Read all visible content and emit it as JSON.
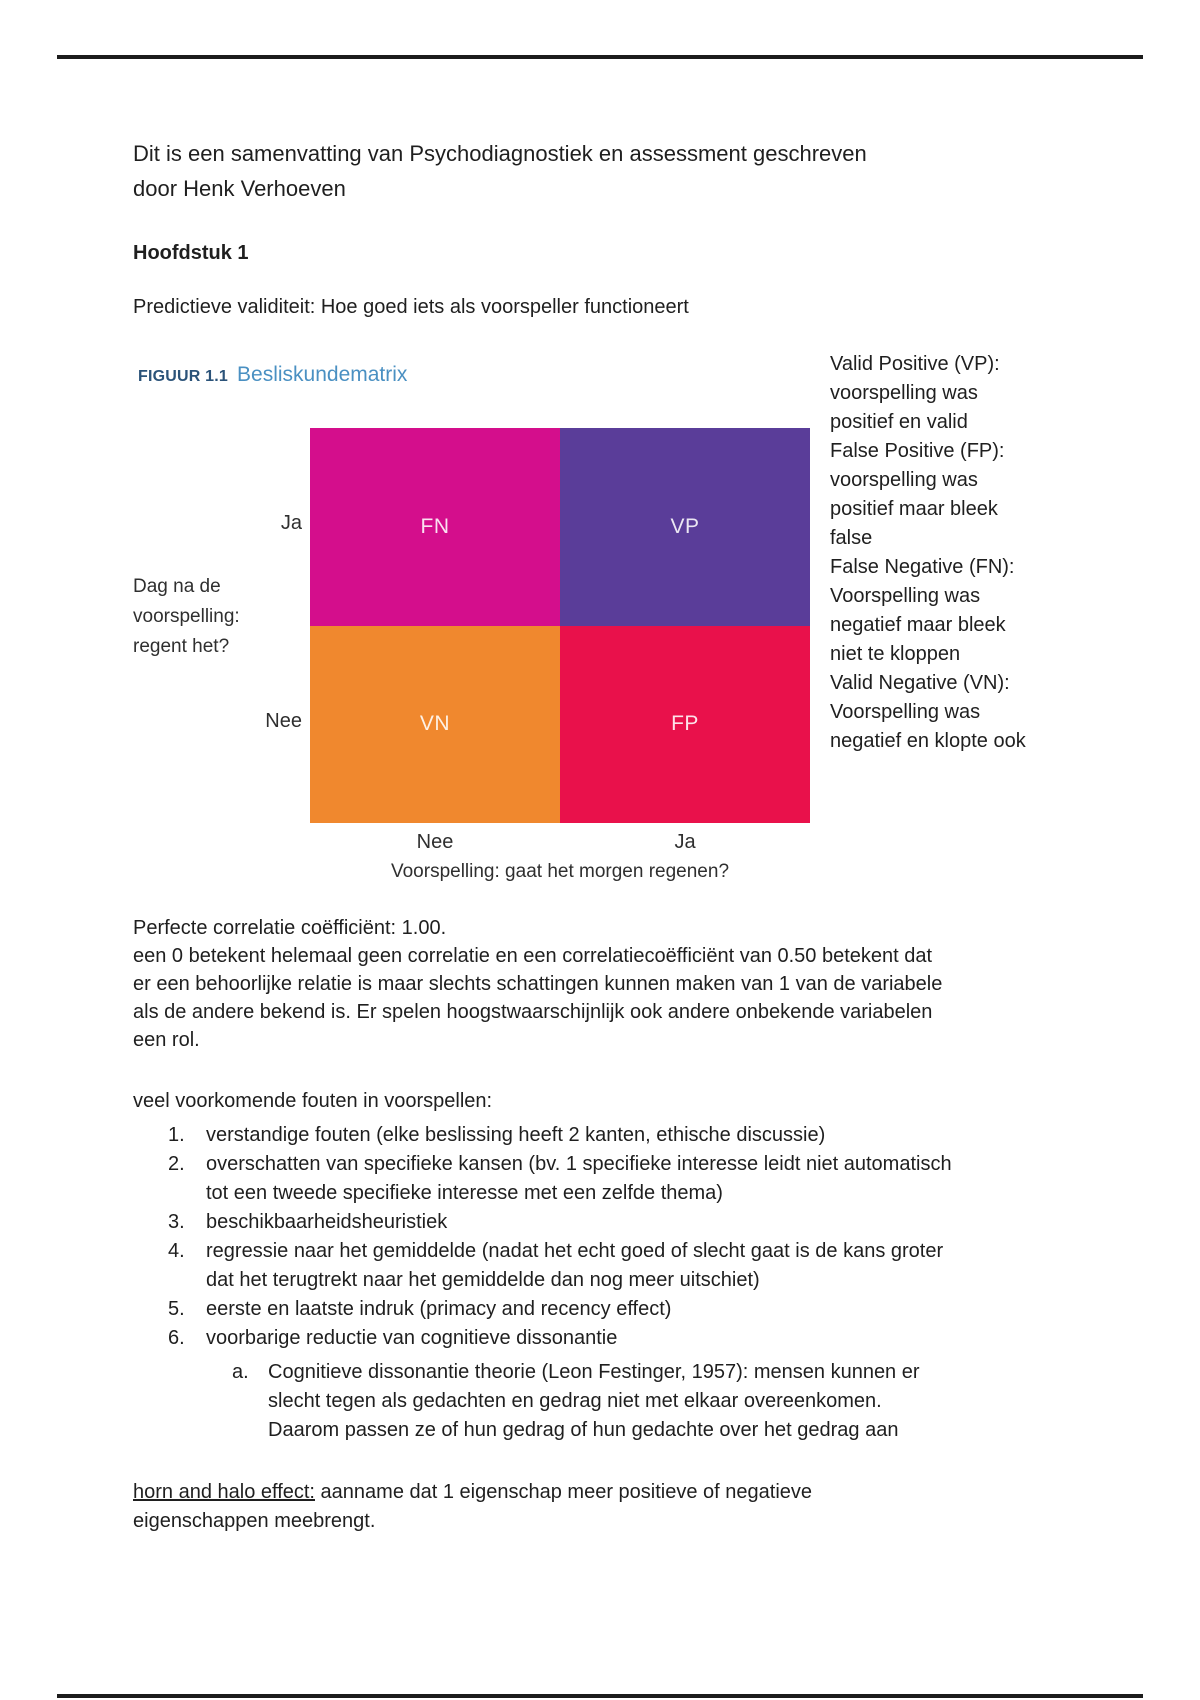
{
  "colors": {
    "rule": "#1c1c1c",
    "figure_label": "#2b5379",
    "figure_title": "#4a90c2",
    "quadrant_fn": "#d40e8c",
    "quadrant_vp": "#5a3d99",
    "quadrant_vn": "#f0882e",
    "quadrant_fp": "#e9114b"
  },
  "doc": {
    "intro": "Dit is een samenvatting van Psychodiagnostiek en assessment geschreven\ndoor Henk Verhoeven",
    "chapter": "Hoofdstuk 1",
    "lead": "Predictieve validiteit: Hoe goed iets als voorspeller functioneert"
  },
  "figure": {
    "label": "FIGUUR 1.1",
    "title": "Besliskundematrix",
    "y_axis_label": "Dag na de\nvoorspelling:\nregent het?",
    "row_top_label": "Ja",
    "row_bottom_label": "Nee",
    "col_left_label": "Nee",
    "col_right_label": "Ja",
    "x_axis_label": "Voorspelling: gaat het morgen regenen?",
    "quadrant_fn": "FN",
    "quadrant_vp": "VP",
    "quadrant_vn": "VN",
    "quadrant_fp": "FP"
  },
  "legend": {
    "text": "Valid Positive (VP):\nvoorspelling was\npositief en valid\nFalse Positive (FP):\nvoorspelling was\npositief maar bleek\nfalse\nFalse Negative (FN):\nVoorspelling was\nnegatief maar bleek\nniet te kloppen\nValid Negative (VN):\nVoorspelling was\nnegatief en klopte ook"
  },
  "body": {
    "correlation_paragraph": "Perfecte correlatie coëfficiënt: 1.00.\neen 0 betekent helemaal geen correlatie en een correlatiecoëfficiënt van 0.50 betekent dat\ner een behoorlijke relatie is maar slechts schattingen kunnen maken van 1 van de variabele\nals de andere bekend is. Er spelen hoogstwaarschijnlijk ook andere onbekende variabelen\neen rol.",
    "errors_heading": "veel voorkomende fouten in voorspellen:",
    "errors_list": [
      {
        "num": "1.",
        "text": "verstandige fouten (elke beslissing heeft 2 kanten, ethische discussie)"
      },
      {
        "num": "2.",
        "text": "overschatten van specifieke kansen (bv. 1 specifieke interesse leidt niet automatisch\ntot een tweede specifieke interesse met een zelfde thema)"
      },
      {
        "num": "3.",
        "text": "beschikbaarheidsheuristiek"
      },
      {
        "num": "4.",
        "text": "regressie naar het gemiddelde (nadat het echt goed of slecht gaat is de kans groter\ndat het terugtrekt naar het gemiddelde dan nog meer uitschiet)"
      },
      {
        "num": "5.",
        "text": "eerste en laatste indruk (primacy and recency effect)"
      },
      {
        "num": "6.",
        "text": "voorbarige reductie van cognitieve dissonantie"
      }
    ],
    "sub_item": {
      "num": "a.",
      "text": "Cognitieve dissonantie theorie (Leon Festinger, 1957): mensen kunnen er\nslecht tegen als gedachten en gedrag niet met elkaar overeenkomen.\nDaarom passen ze of hun gedrag of hun gedachte over het gedrag aan"
    },
    "horn_halo_term": "horn and halo effect:",
    "horn_halo_rest": " aanname dat 1 eigenschap meer positieve of negatieve\neigenschappen meebrengt."
  }
}
